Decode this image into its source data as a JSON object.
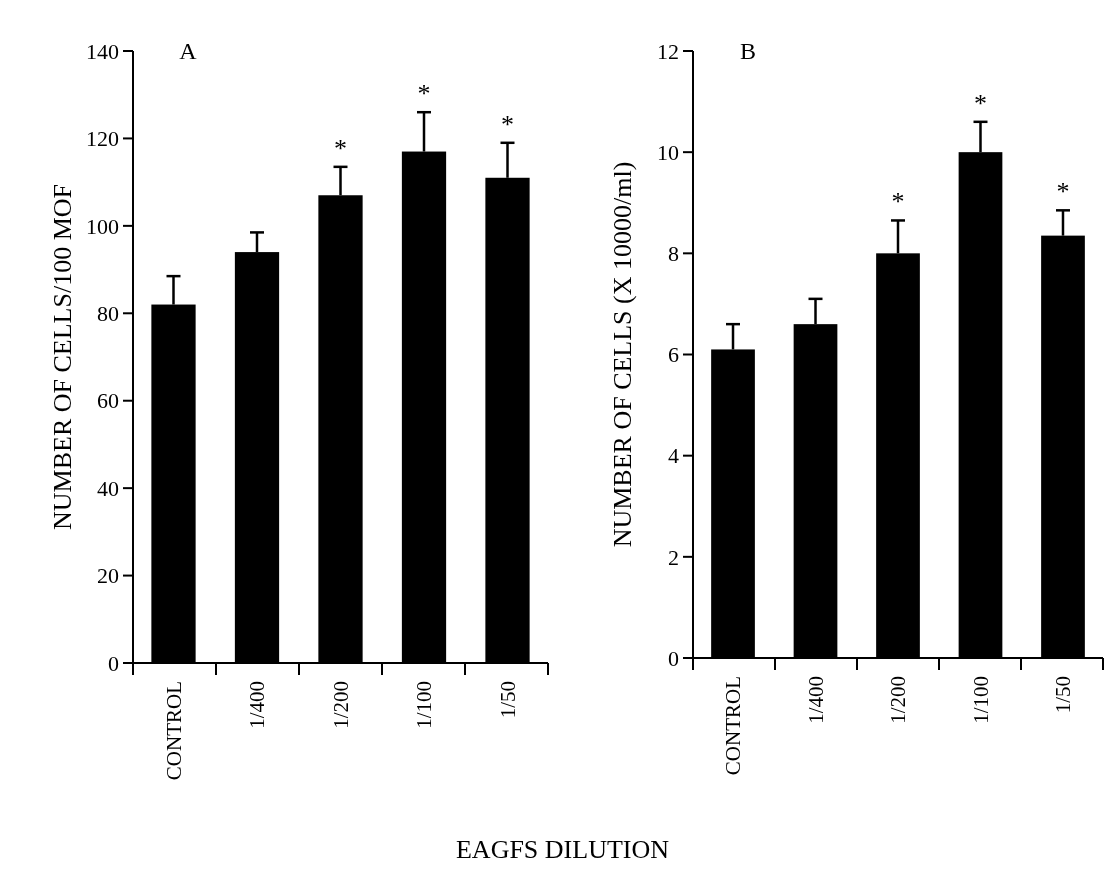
{
  "chart_data": [
    {
      "type": "bar",
      "title": "A",
      "xlabel": "EAGFS DILUTION",
      "ylabel": "NUMBER OF CELLS/100 MOF",
      "categories": [
        "CONTROL",
        "1/400",
        "1/200",
        "1/100",
        "1/50"
      ],
      "values": [
        82,
        94,
        107,
        117,
        111
      ],
      "errors": [
        [
          82,
          88.5
        ],
        [
          94,
          98.5
        ],
        [
          107,
          113.5
        ],
        [
          117,
          126
        ],
        [
          111,
          119
        ]
      ],
      "color": "#000000",
      "ylim": [
        0,
        140
      ],
      "yticks": [
        0,
        20,
        40,
        60,
        80,
        100,
        120,
        140
      ],
      "grid": false,
      "annotations": [
        {
          "text": "*",
          "x": "1/200",
          "y": 113.5
        },
        {
          "text": "*",
          "x": "1/100",
          "y": 126
        },
        {
          "text": "*",
          "x": "1/50",
          "y": 119
        }
      ]
    },
    {
      "type": "bar",
      "title": "B",
      "ylabel": "NUMBER OF CELLS (X 10000/ml)",
      "categories": [
        "CONTROL",
        "1/400",
        "1/200",
        "1/100",
        "1/50"
      ],
      "values": [
        6.1,
        6.6,
        8.0,
        10.0,
        8.35
      ],
      "errors": [
        [
          6.1,
          6.6
        ],
        [
          6.6,
          7.1
        ],
        [
          8.0,
          8.65
        ],
        [
          10.0,
          10.6
        ],
        [
          8.35,
          8.85
        ]
      ],
      "color": "#000000",
      "ylim": [
        0,
        12
      ],
      "yticks": [
        0,
        2,
        4,
        6,
        8,
        10,
        12
      ],
      "grid": false,
      "annotations": [
        {
          "text": "*",
          "x": "1/200",
          "y": 8.65
        },
        {
          "text": "*",
          "x": "1/100",
          "y": 10.6
        },
        {
          "text": "*",
          "x": "1/50",
          "y": 8.85
        }
      ]
    }
  ]
}
